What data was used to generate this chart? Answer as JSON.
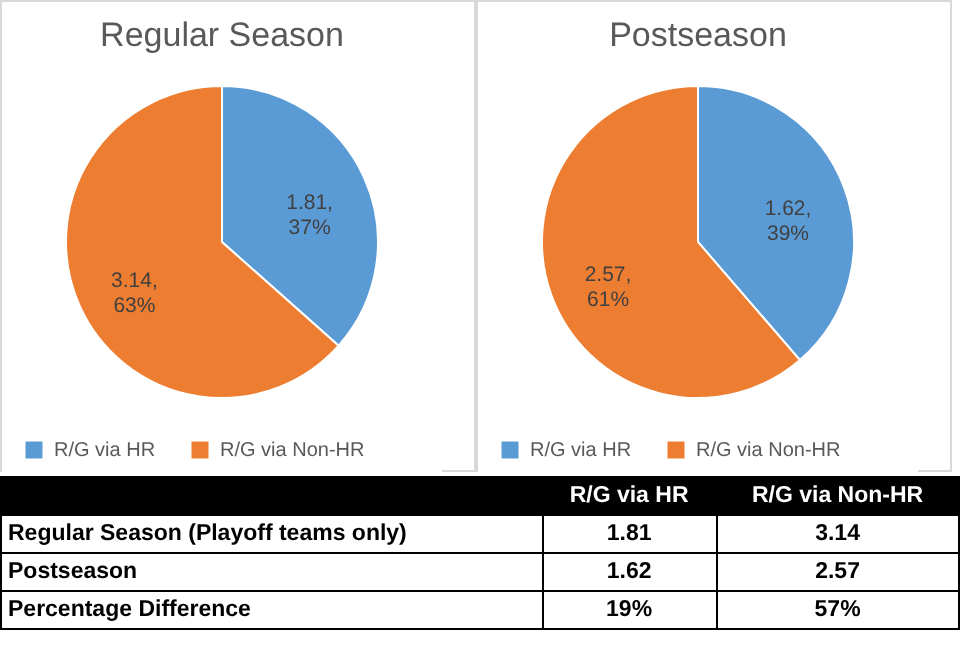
{
  "chart_data": [
    {
      "type": "pie",
      "title": "Regular Season",
      "categories": [
        "R/G via HR",
        "R/G via Non-HR"
      ],
      "values": [
        1.81,
        3.14
      ],
      "colors": [
        "#5b9bd5",
        "#ed7d31"
      ],
      "value_labels": [
        "1.81, 37%",
        "3.14, 63%"
      ],
      "legend": "bottom"
    },
    {
      "type": "pie",
      "title": "Postseason",
      "categories": [
        "R/G via HR",
        "R/G via Non-HR"
      ],
      "values": [
        1.62,
        2.57
      ],
      "colors": [
        "#5b9bd5",
        "#ed7d31"
      ],
      "value_labels": [
        "1.62, 39%",
        "2.57, 61%"
      ],
      "legend": "bottom"
    },
    {
      "type": "other",
      "categories": [
        "R/G via HR",
        "R/G via Non-HR"
      ],
      "y_categories": [
        "Regular Season (Playoff teams only)",
        "Postseason",
        "Percentage Difference"
      ],
      "cell_labels": [
        [
          "1.81",
          "3.14"
        ],
        [
          "1.62",
          "2.57"
        ],
        [
          "19%",
          "57%"
        ]
      ]
    }
  ]
}
